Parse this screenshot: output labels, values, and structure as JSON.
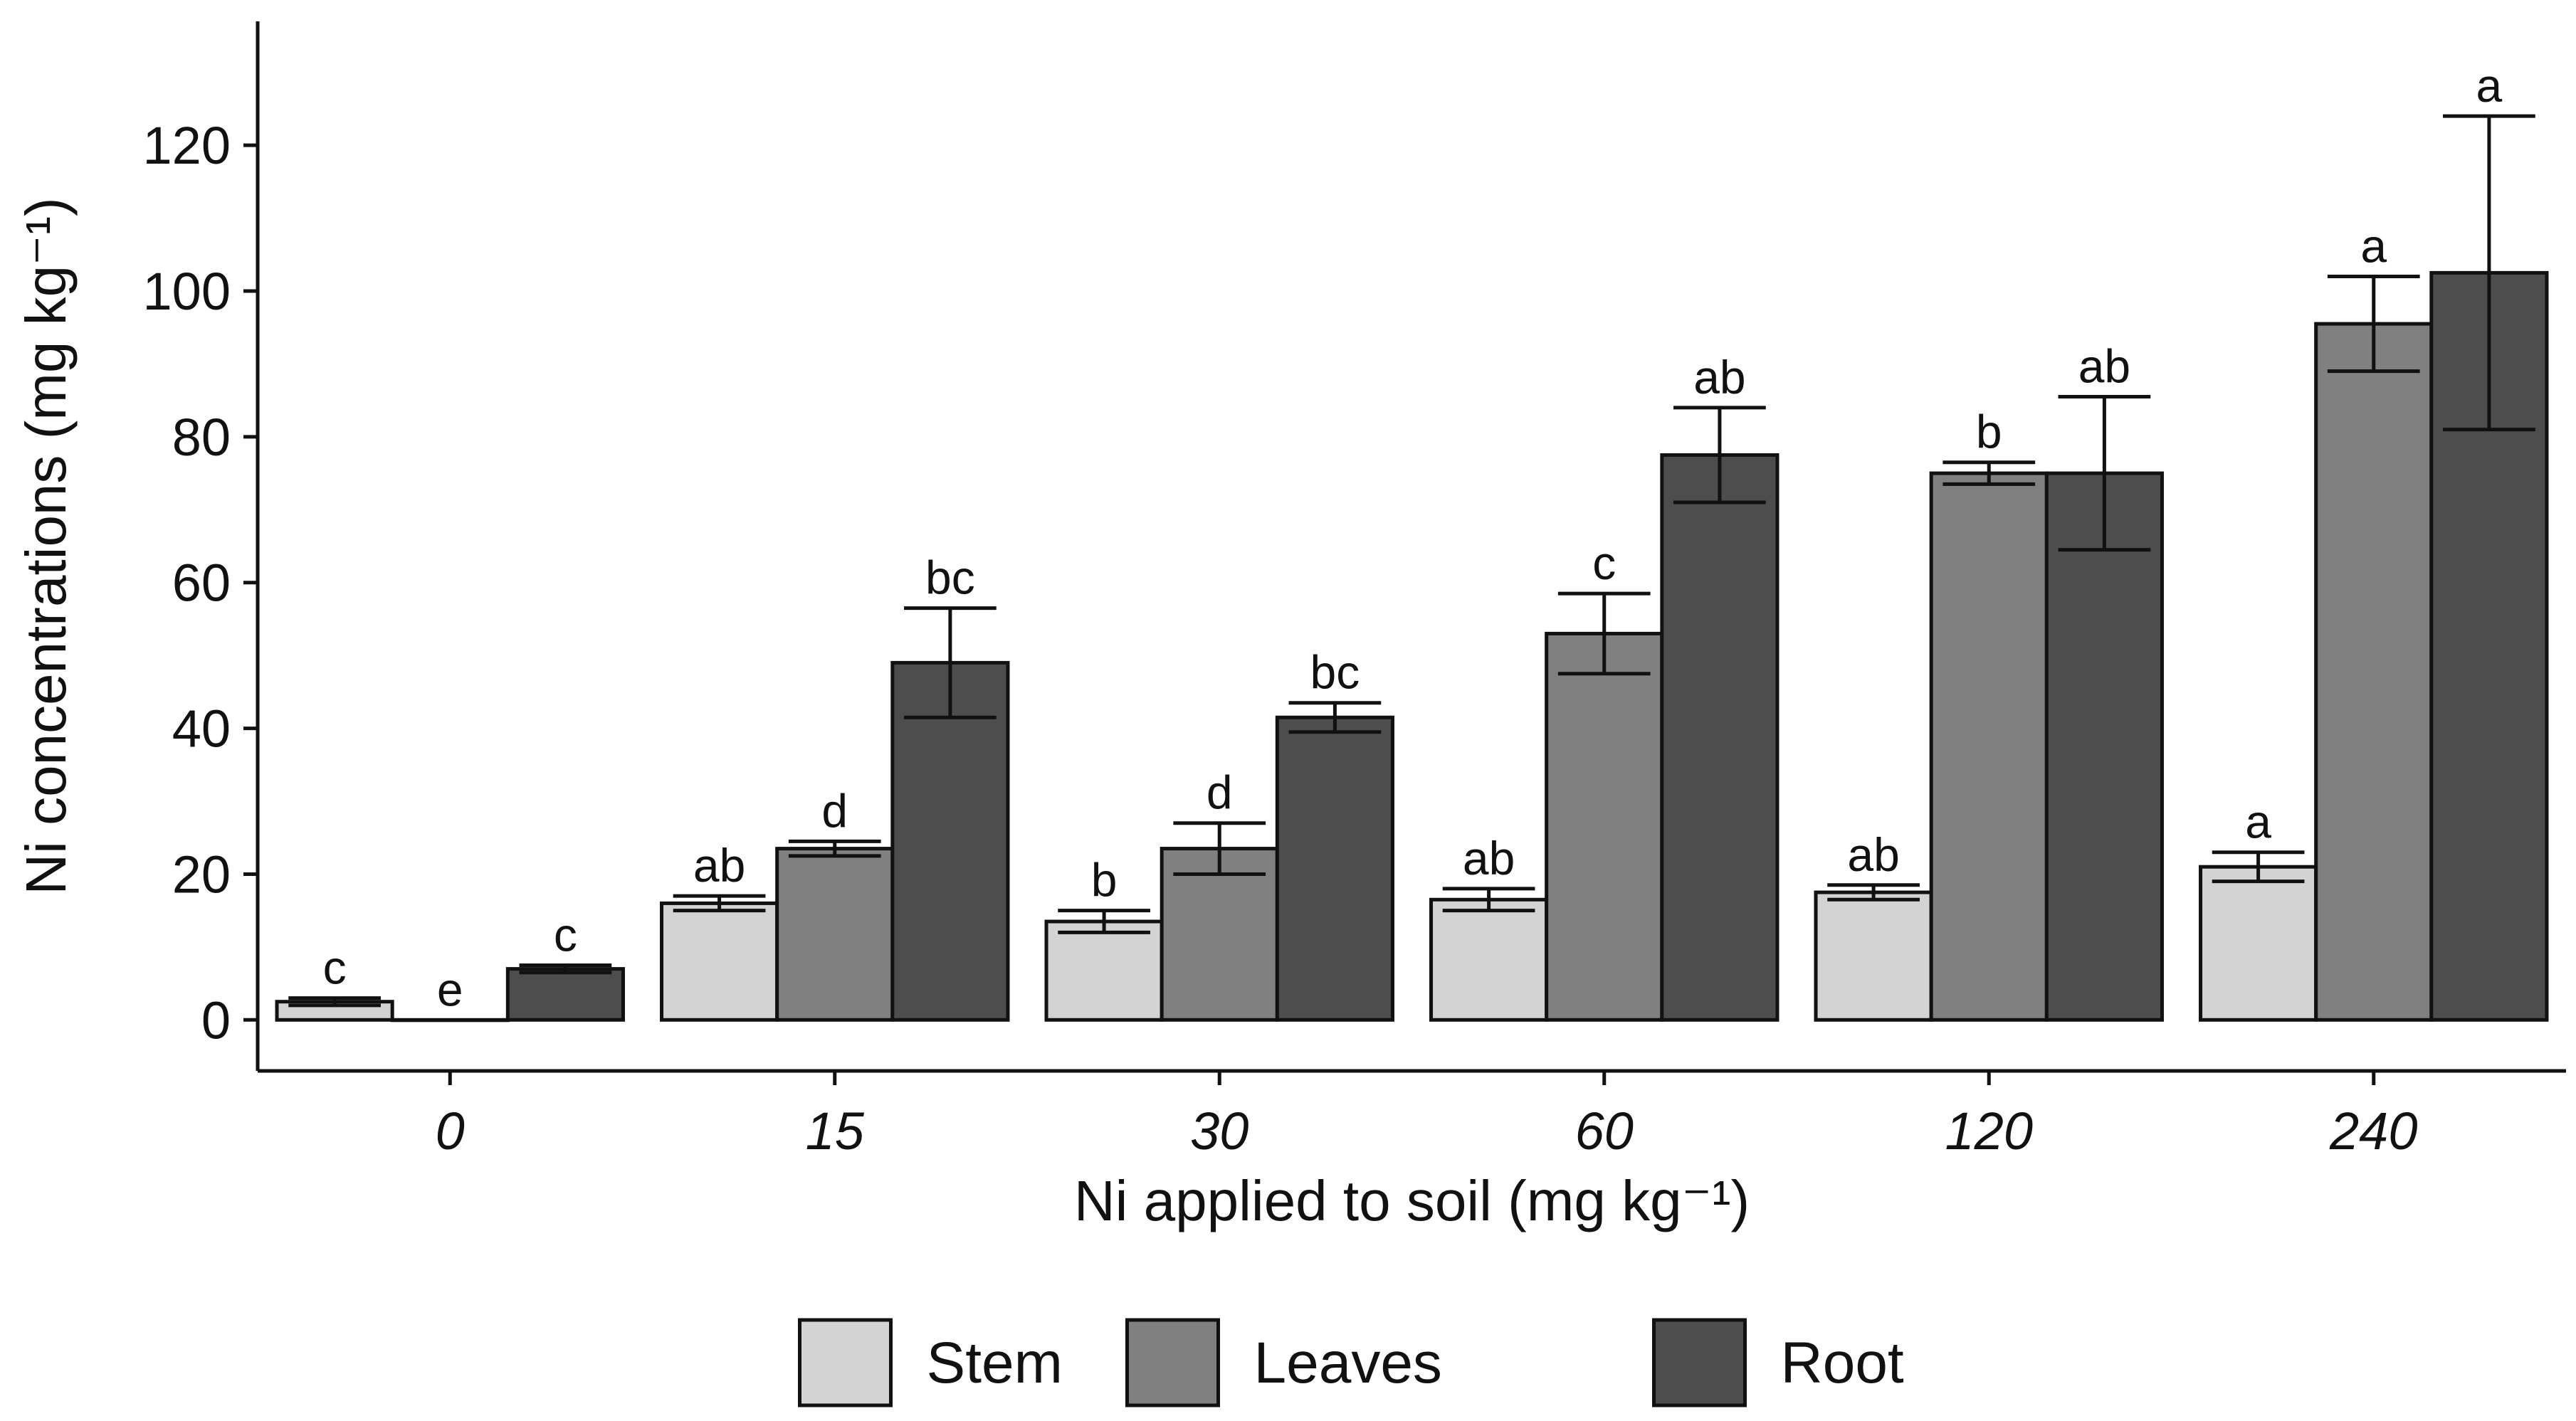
{
  "chart_data": {
    "type": "bar",
    "xlabel": "Ni applied to soil (mg kg⁻¹)",
    "ylabel": "Ni concentrations (mg kg⁻¹)",
    "categories": [
      "0",
      "15",
      "30",
      "60",
      "120",
      "240"
    ],
    "ylim": [
      -7,
      137
    ],
    "yticks": [
      0,
      20,
      40,
      60,
      80,
      100,
      120
    ],
    "grid": false,
    "legend_position": "bottom",
    "series": [
      {
        "name": "Stem",
        "color": "#d3d3d3",
        "values": [
          2.5,
          16,
          13.5,
          16.5,
          17.5,
          21
        ],
        "errors": [
          0.5,
          1,
          1.5,
          1.5,
          1,
          2
        ],
        "letters": [
          "c",
          "ab",
          "b",
          "ab",
          "ab",
          "a"
        ]
      },
      {
        "name": "Leaves",
        "color": "#808080",
        "values": [
          0,
          23.5,
          23.5,
          53,
          75,
          95.5
        ],
        "errors": [
          0,
          1,
          3.5,
          5.5,
          1.5,
          6.5
        ],
        "letters": [
          "e",
          "d",
          "d",
          "c",
          "b",
          "a"
        ]
      },
      {
        "name": "Root",
        "color": "#4d4d4d",
        "values": [
          7,
          49,
          41.5,
          77.5,
          75,
          102.5
        ],
        "errors": [
          0.5,
          7.5,
          2,
          6.5,
          10.5,
          21.5
        ],
        "letters": [
          "c",
          "bc",
          "bc",
          "ab",
          "ab",
          "a"
        ]
      }
    ]
  }
}
